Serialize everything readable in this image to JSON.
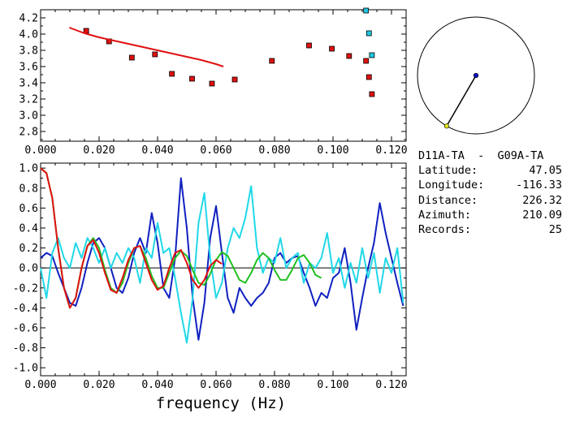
{
  "info": {
    "stations": "D11A-TA  -  G09A-TA",
    "latitude_label": "Latitude:",
    "latitude": "47.05",
    "longitude_label": "Longitude:",
    "longitude": "-116.33",
    "distance_label": "Distance:",
    "distance": "226.32",
    "azimuth_label": "Azimuth:",
    "azimuth": "210.09",
    "records_label": "Records:",
    "records": "25"
  },
  "compass": {
    "azimuth_deg": 210.09,
    "center_dot_color": "#1010c0",
    "end_dot_color": "#e0e020",
    "line_color": "#000000"
  },
  "chart_data": [
    {
      "type": "scatter",
      "xlim": [
        0.0,
        0.125
      ],
      "ylim": [
        2.68,
        4.3
      ],
      "xticks": [
        "0.000",
        "0.020",
        "0.040",
        "0.060",
        "0.080",
        "0.100",
        "0.120"
      ],
      "yticks": [
        "2.8",
        "3.0",
        "3.2",
        "3.4",
        "3.6",
        "3.8",
        "4.0",
        "4.2"
      ],
      "xtick_values": [
        0.0,
        0.02,
        0.04,
        0.06,
        0.08,
        0.1,
        0.12
      ],
      "ytick_values": [
        2.8,
        3.0,
        3.2,
        3.4,
        3.6,
        3.8,
        4.0,
        4.2
      ],
      "series": [
        {
          "kind": "points",
          "color": "#e01010",
          "points": [
            [
              0.0156,
              4.04
            ],
            [
              0.0234,
              3.91
            ],
            [
              0.0312,
              3.71
            ],
            [
              0.0391,
              3.75
            ],
            [
              0.0449,
              3.51
            ],
            [
              0.0518,
              3.45
            ],
            [
              0.0586,
              3.39
            ],
            [
              0.0664,
              3.44
            ],
            [
              0.0791,
              3.67
            ],
            [
              0.0918,
              3.86
            ],
            [
              0.0996,
              3.82
            ],
            [
              0.1055,
              3.73
            ],
            [
              0.1113,
              3.67
            ],
            [
              0.1123,
              3.47
            ],
            [
              0.1133,
              3.26
            ]
          ]
        },
        {
          "kind": "points",
          "color": "#20c8e0",
          "points": [
            [
              0.1113,
              4.29
            ],
            [
              0.1123,
              4.01
            ],
            [
              0.1133,
              3.74
            ]
          ]
        },
        {
          "kind": "line",
          "color": "#e01010",
          "x": [
            0.0098,
            0.015,
            0.02,
            0.025,
            0.03,
            0.035,
            0.04,
            0.045,
            0.05,
            0.055,
            0.06,
            0.0625
          ],
          "y": [
            4.08,
            4.01,
            3.96,
            3.92,
            3.88,
            3.84,
            3.8,
            3.76,
            3.72,
            3.68,
            3.63,
            3.6
          ]
        }
      ]
    },
    {
      "type": "line",
      "xlabel": "frequency (Hz)",
      "xlim": [
        0.0,
        0.125
      ],
      "ylim": [
        -1.08,
        1.05
      ],
      "xticks": [
        "0.000",
        "0.020",
        "0.040",
        "0.060",
        "0.080",
        "0.100",
        "0.120"
      ],
      "yticks": [
        "-1.0",
        "-0.8",
        "-0.6",
        "-0.4",
        "-0.2",
        "0.0",
        "0.2",
        "0.4",
        "0.6",
        "0.8",
        "1.0"
      ],
      "xtick_values": [
        0.0,
        0.02,
        0.04,
        0.06,
        0.08,
        0.1,
        0.12
      ],
      "ytick_values": [
        -1.0,
        -0.8,
        -0.6,
        -0.4,
        -0.2,
        0.0,
        0.2,
        0.4,
        0.6,
        0.8,
        1.0
      ],
      "series": [
        {
          "color": "#1020c0",
          "x": [
            0.0,
            0.002,
            0.004,
            0.006,
            0.008,
            0.01,
            0.012,
            0.014,
            0.016,
            0.018,
            0.02,
            0.022,
            0.024,
            0.026,
            0.028,
            0.03,
            0.032,
            0.034,
            0.036,
            0.038,
            0.04,
            0.042,
            0.044,
            0.046,
            0.048,
            0.05,
            0.052,
            0.054,
            0.056,
            0.058,
            0.06,
            0.062,
            0.064,
            0.066,
            0.068,
            0.07,
            0.072,
            0.074,
            0.076,
            0.078,
            0.08,
            0.082,
            0.084,
            0.086,
            0.088,
            0.09,
            0.092,
            0.094,
            0.096,
            0.098,
            0.1,
            0.102,
            0.104,
            0.106,
            0.108,
            0.11,
            0.112,
            0.114,
            0.116,
            0.118,
            0.12,
            0.122,
            0.124
          ],
          "y": [
            0.1,
            0.15,
            0.12,
            -0.05,
            -0.2,
            -0.35,
            -0.38,
            -0.2,
            0.05,
            0.25,
            0.3,
            0.2,
            0.0,
            -0.2,
            -0.25,
            -0.1,
            0.15,
            0.3,
            0.15,
            0.55,
            0.25,
            -0.2,
            -0.3,
            0.1,
            0.9,
            0.4,
            -0.3,
            -0.72,
            -0.35,
            0.3,
            0.62,
            0.15,
            -0.3,
            -0.45,
            -0.2,
            -0.3,
            -0.38,
            -0.3,
            -0.25,
            -0.15,
            0.1,
            0.15,
            0.05,
            0.1,
            0.12,
            -0.05,
            -0.2,
            -0.38,
            -0.25,
            -0.3,
            -0.1,
            -0.05,
            0.2,
            -0.15,
            -0.62,
            -0.3,
            0.0,
            0.25,
            0.65,
            0.35,
            0.1,
            -0.15,
            -0.38
          ]
        },
        {
          "color": "#20d8e8",
          "x": [
            0.0,
            0.002,
            0.004,
            0.006,
            0.008,
            0.01,
            0.012,
            0.014,
            0.016,
            0.018,
            0.02,
            0.022,
            0.024,
            0.026,
            0.028,
            0.03,
            0.032,
            0.034,
            0.036,
            0.038,
            0.04,
            0.042,
            0.044,
            0.046,
            0.048,
            0.05,
            0.052,
            0.054,
            0.056,
            0.058,
            0.06,
            0.062,
            0.064,
            0.066,
            0.068,
            0.07,
            0.072,
            0.074,
            0.076,
            0.078,
            0.08,
            0.082,
            0.084,
            0.086,
            0.088,
            0.09,
            0.092,
            0.094,
            0.096,
            0.098,
            0.1,
            0.102,
            0.104,
            0.106,
            0.108,
            0.11,
            0.112,
            0.114,
            0.116,
            0.118,
            0.12,
            0.122,
            0.124
          ],
          "y": [
            0.0,
            -0.3,
            0.15,
            0.3,
            0.1,
            0.0,
            0.25,
            0.1,
            0.3,
            0.2,
            0.05,
            0.2,
            0.0,
            0.15,
            0.05,
            0.2,
            0.1,
            -0.15,
            0.2,
            0.1,
            0.45,
            0.15,
            0.2,
            -0.1,
            -0.45,
            -0.75,
            -0.3,
            0.45,
            0.75,
            0.1,
            -0.3,
            -0.15,
            0.2,
            0.4,
            0.3,
            0.5,
            0.82,
            0.2,
            -0.05,
            0.1,
            0.05,
            0.3,
            0.0,
            0.1,
            0.15,
            -0.15,
            0.05,
            0.0,
            0.1,
            0.35,
            -0.05,
            0.1,
            -0.2,
            0.05,
            -0.15,
            0.2,
            -0.1,
            0.15,
            -0.25,
            0.1,
            -0.05,
            0.2,
            -0.35
          ]
        },
        {
          "color": "#20c020",
          "x": [
            0.0,
            0.002,
            0.004,
            0.006,
            0.008,
            0.01,
            0.012,
            0.014,
            0.016,
            0.018,
            0.02,
            0.022,
            0.024,
            0.026,
            0.028,
            0.03,
            0.032,
            0.034,
            0.036,
            0.038,
            0.04,
            0.042,
            0.044,
            0.046,
            0.048,
            0.05,
            0.052,
            0.054,
            0.056,
            0.058,
            0.06,
            0.062,
            0.064,
            0.066,
            0.068,
            0.07,
            0.072,
            0.074,
            0.076,
            0.078,
            0.08,
            0.082,
            0.084,
            0.086,
            0.088,
            0.09,
            0.092,
            0.094,
            0.096
          ],
          "y": [
            1.0,
            0.95,
            0.7,
            0.2,
            -0.2,
            -0.4,
            -0.3,
            0.0,
            0.22,
            0.3,
            0.2,
            -0.02,
            -0.2,
            -0.25,
            -0.15,
            0.05,
            0.2,
            0.22,
            0.1,
            -0.08,
            -0.2,
            -0.2,
            -0.05,
            0.1,
            0.17,
            0.12,
            -0.02,
            -0.15,
            -0.17,
            -0.06,
            0.08,
            0.16,
            0.12,
            0.0,
            -0.12,
            -0.15,
            -0.05,
            0.08,
            0.15,
            0.1,
            -0.02,
            -0.12,
            -0.12,
            -0.02,
            0.1,
            0.13,
            0.05,
            -0.07,
            -0.1
          ]
        },
        {
          "color": "#e01010",
          "x": [
            0.0,
            0.002,
            0.004,
            0.006,
            0.008,
            0.01,
            0.012,
            0.014,
            0.016,
            0.018,
            0.02,
            0.022,
            0.024,
            0.026,
            0.028,
            0.03,
            0.032,
            0.034,
            0.036,
            0.038,
            0.04,
            0.042,
            0.044,
            0.046,
            0.048,
            0.05,
            0.052,
            0.054,
            0.056,
            0.058,
            0.06,
            0.062
          ],
          "y": [
            1.0,
            0.95,
            0.7,
            0.2,
            -0.2,
            -0.4,
            -0.3,
            0.0,
            0.22,
            0.28,
            0.15,
            -0.05,
            -0.22,
            -0.25,
            -0.1,
            0.08,
            0.2,
            0.22,
            0.05,
            -0.12,
            -0.22,
            -0.18,
            0.0,
            0.15,
            0.18,
            0.05,
            -0.12,
            -0.2,
            -0.12,
            0.02,
            0.08,
            0.04
          ]
        }
      ]
    }
  ]
}
